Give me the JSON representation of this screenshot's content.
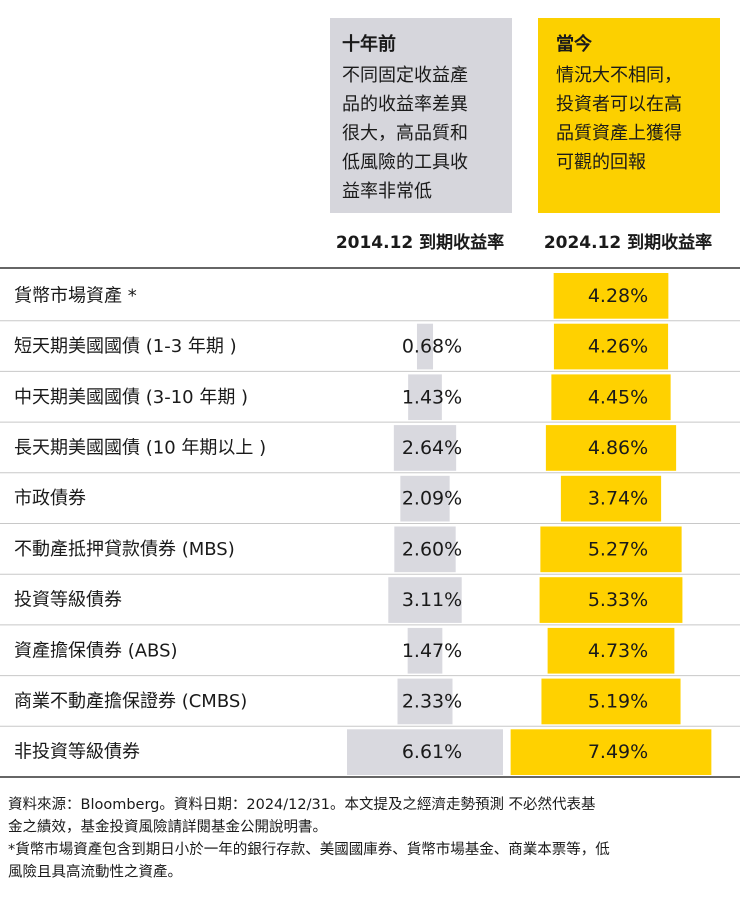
{
  "headers": [
    {
      "title": "十年前",
      "lines": [
        "不同固定收益產",
        "品的收益率差異",
        "很大，高品質和",
        "低風險的工具收",
        "益率非常低"
      ]
    },
    {
      "title": "當今",
      "lines": [
        "情況大不相同，",
        "投資者可以在高",
        "品質資產上獲得",
        "可觀的回報"
      ]
    }
  ],
  "chart_data": {
    "type": "bar",
    "categories": [
      "貨幣市場資產 *",
      "短天期美國國債 (1-3 年期 )",
      "中天期美國國債 (3-10 年期 )",
      "長天期美國國債 (10 年期以上 )",
      "市政債券",
      "不動產抵押貸款債券 (MBS)",
      "投資等級債券",
      "資產擔保債券 (ABS)",
      "商業不動產擔保證券 (CMBS)",
      "非投資等級債券"
    ],
    "series": [
      {
        "name": "2014.12 到期收益率",
        "color": "#d9d9df",
        "values": [
          null,
          0.68,
          1.43,
          2.64,
          2.09,
          2.6,
          3.11,
          1.47,
          2.33,
          6.61
        ],
        "value_labels": [
          null,
          "0.68%",
          "1.43%",
          "2.64%",
          "2.09%",
          "2.60%",
          "3.11%",
          "1.47%",
          "2.33%",
          "6.61%"
        ]
      },
      {
        "name": "2024.12 到期收益率",
        "color": "#ffd100",
        "values": [
          4.28,
          4.26,
          4.45,
          4.86,
          3.74,
          5.27,
          5.33,
          4.73,
          5.19,
          7.49
        ],
        "value_labels": [
          "4.28%",
          "4.26%",
          "4.45%",
          "4.86%",
          "3.74%",
          "5.27%",
          "5.33%",
          "4.73%",
          "5.19%",
          "7.49%"
        ]
      }
    ]
  },
  "notes": [
    "資料來源：Bloomberg。資料日期：2024/12/31。本文提及之經濟走勢預測 不必然代表基",
    "金之績效，基金投資風險請詳閱基金公開說明書。",
    "*貨幣市場資產包含到期日小於一年的銀行存款、美國國庫券、貨幣市場基金、商業本票等，低",
    "風險且具高流動性之資產。"
  ]
}
